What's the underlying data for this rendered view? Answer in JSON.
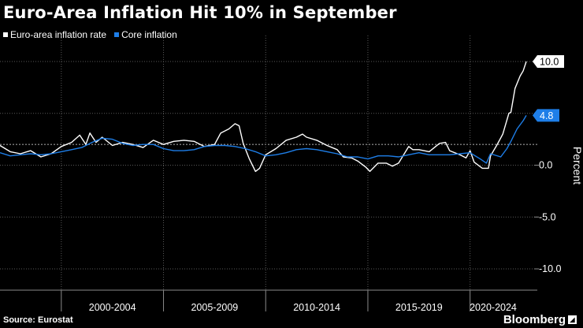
{
  "title": "Euro-Area Inflation Hit 10% in September",
  "source": "Source: Eurostat",
  "brand": "Bloomberg",
  "colors": {
    "headline": "#ffffff",
    "core": "#1e7ee8",
    "background": "#000000",
    "reference_line": "#9a9a9a",
    "grid": "#5a5a5a"
  },
  "chart_data": {
    "type": "line",
    "ylabel": "Percent",
    "ylim": [
      -12,
      13
    ],
    "yticks": [
      10.0,
      5.0,
      0.0,
      -5.0,
      -10.0
    ],
    "ytick_labels": [
      "10.0",
      "5.0",
      "0.0",
      "-5.0",
      "-10.0"
    ],
    "xlim": [
      1997,
      2022.75
    ],
    "x_periods": [
      "2000-2004",
      "2005-2009",
      "2010-2014",
      "2015-2019",
      "2020-2024"
    ],
    "reference_line_y": 2,
    "grid": "dotted horizontal and vertical",
    "legend": "top-left",
    "series": [
      {
        "name": "Euro-area inflation rate",
        "color": "#ffffff",
        "points": [
          [
            1997.0,
            1.9
          ],
          [
            1997.5,
            1.3
          ],
          [
            1998.0,
            1.1
          ],
          [
            1998.5,
            1.4
          ],
          [
            1999.0,
            0.8
          ],
          [
            1999.5,
            1.1
          ],
          [
            2000.0,
            1.8
          ],
          [
            2000.5,
            2.2
          ],
          [
            2000.9,
            2.9
          ],
          [
            2001.2,
            2.0
          ],
          [
            2001.4,
            3.1
          ],
          [
            2001.7,
            2.2
          ],
          [
            2002.0,
            2.7
          ],
          [
            2002.5,
            1.9
          ],
          [
            2003.0,
            2.2
          ],
          [
            2003.5,
            2.0
          ],
          [
            2004.0,
            1.7
          ],
          [
            2004.5,
            2.4
          ],
          [
            2005.0,
            2.0
          ],
          [
            2005.5,
            2.3
          ],
          [
            2006.0,
            2.4
          ],
          [
            2006.5,
            2.3
          ],
          [
            2007.0,
            1.8
          ],
          [
            2007.5,
            2.0
          ],
          [
            2007.8,
            3.1
          ],
          [
            2008.2,
            3.5
          ],
          [
            2008.5,
            4.0
          ],
          [
            2008.7,
            3.8
          ],
          [
            2008.9,
            2.1
          ],
          [
            2009.2,
            0.6
          ],
          [
            2009.5,
            -0.6
          ],
          [
            2009.7,
            -0.3
          ],
          [
            2010.0,
            1.0
          ],
          [
            2010.5,
            1.6
          ],
          [
            2011.0,
            2.4
          ],
          [
            2011.5,
            2.7
          ],
          [
            2011.8,
            3.0
          ],
          [
            2012.0,
            2.7
          ],
          [
            2012.5,
            2.4
          ],
          [
            2013.0,
            1.9
          ],
          [
            2013.5,
            1.5
          ],
          [
            2013.8,
            0.8
          ],
          [
            2014.2,
            0.7
          ],
          [
            2014.5,
            0.4
          ],
          [
            2014.9,
            -0.2
          ],
          [
            2015.1,
            -0.6
          ],
          [
            2015.5,
            0.2
          ],
          [
            2015.9,
            0.2
          ],
          [
            2016.2,
            -0.1
          ],
          [
            2016.5,
            0.2
          ],
          [
            2017.0,
            1.8
          ],
          [
            2017.2,
            1.5
          ],
          [
            2017.5,
            1.5
          ],
          [
            2018.0,
            1.3
          ],
          [
            2018.5,
            2.1
          ],
          [
            2018.8,
            2.2
          ],
          [
            2019.0,
            1.4
          ],
          [
            2019.5,
            1.0
          ],
          [
            2019.8,
            0.7
          ],
          [
            2020.0,
            1.4
          ],
          [
            2020.2,
            0.3
          ],
          [
            2020.6,
            -0.3
          ],
          [
            2020.9,
            -0.3
          ],
          [
            2021.0,
            0.9
          ],
          [
            2021.3,
            1.9
          ],
          [
            2021.6,
            3.0
          ],
          [
            2021.9,
            5.0
          ],
          [
            2022.0,
            5.1
          ],
          [
            2022.2,
            7.4
          ],
          [
            2022.45,
            8.6
          ],
          [
            2022.6,
            9.1
          ],
          [
            2022.75,
            10.0
          ]
        ]
      },
      {
        "name": "Core inflation",
        "color": "#1e7ee8",
        "points": [
          [
            1997.0,
            1.2
          ],
          [
            1997.5,
            0.9
          ],
          [
            1998.0,
            1.0
          ],
          [
            1998.5,
            1.1
          ],
          [
            1999.0,
            1.0
          ],
          [
            1999.5,
            1.1
          ],
          [
            2000.0,
            1.3
          ],
          [
            2000.5,
            1.5
          ],
          [
            2001.0,
            1.7
          ],
          [
            2001.5,
            2.2
          ],
          [
            2002.0,
            2.6
          ],
          [
            2002.5,
            2.5
          ],
          [
            2003.0,
            2.1
          ],
          [
            2003.5,
            1.9
          ],
          [
            2004.0,
            2.0
          ],
          [
            2004.5,
            2.0
          ],
          [
            2005.0,
            1.6
          ],
          [
            2005.5,
            1.4
          ],
          [
            2006.0,
            1.4
          ],
          [
            2006.5,
            1.5
          ],
          [
            2007.0,
            1.8
          ],
          [
            2007.5,
            1.9
          ],
          [
            2008.0,
            1.9
          ],
          [
            2008.5,
            1.8
          ],
          [
            2009.0,
            1.6
          ],
          [
            2009.5,
            1.3
          ],
          [
            2010.0,
            0.9
          ],
          [
            2010.5,
            1.0
          ],
          [
            2011.0,
            1.2
          ],
          [
            2011.5,
            1.5
          ],
          [
            2012.0,
            1.6
          ],
          [
            2012.5,
            1.5
          ],
          [
            2013.0,
            1.3
          ],
          [
            2013.5,
            1.1
          ],
          [
            2014.0,
            0.8
          ],
          [
            2014.5,
            0.8
          ],
          [
            2015.0,
            0.6
          ],
          [
            2015.5,
            0.9
          ],
          [
            2016.0,
            0.9
          ],
          [
            2016.5,
            0.8
          ],
          [
            2017.0,
            1.0
          ],
          [
            2017.5,
            1.2
          ],
          [
            2018.0,
            1.0
          ],
          [
            2018.5,
            1.0
          ],
          [
            2019.0,
            1.0
          ],
          [
            2019.5,
            1.1
          ],
          [
            2020.0,
            1.2
          ],
          [
            2020.5,
            0.6
          ],
          [
            2020.8,
            0.2
          ],
          [
            2021.0,
            1.1
          ],
          [
            2021.5,
            0.8
          ],
          [
            2021.8,
            1.6
          ],
          [
            2022.0,
            2.3
          ],
          [
            2022.3,
            3.5
          ],
          [
            2022.6,
            4.3
          ],
          [
            2022.75,
            4.8
          ]
        ]
      }
    ],
    "end_labels": [
      {
        "series": "Euro-area inflation rate",
        "text": "10.0",
        "value": 10.0
      },
      {
        "series": "Core inflation",
        "text": "4.8",
        "value": 4.8
      }
    ]
  }
}
